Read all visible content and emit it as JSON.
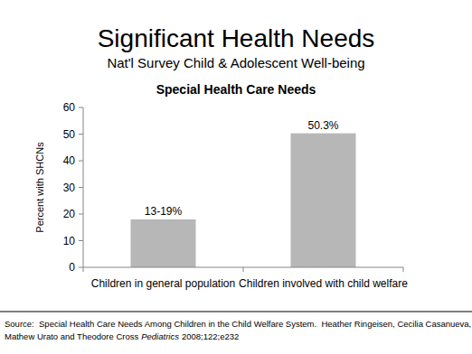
{
  "slide": {
    "title": "Significant Health Needs",
    "subtitle": "Nat'l Survey Child & Adolescent Well-being",
    "source": {
      "line1": "Source:  Special Health Care Needs Among Children in the Child Welfare System.  Heather Ringeisen, Cecilia Casanueva,",
      "authors": "Mathew Urato and Theodore Cross",
      "journal": "Pediatrics",
      "citation": "2008;122;e232"
    }
  },
  "chart_data": {
    "type": "bar",
    "title": "Special Health Care Needs",
    "y_label": "Percent with SHCNs",
    "categories": [
      "Children in general population",
      "Children involved with child welfare"
    ],
    "values": [
      18,
      50.3
    ],
    "value_labels": [
      "13-19%",
      "50.3%"
    ],
    "color": "#b7b7b7",
    "ylim": [
      0,
      60
    ],
    "yticks": [
      0,
      10,
      20,
      30,
      40,
      50,
      60
    ],
    "grid": false,
    "data_labels": true
  }
}
